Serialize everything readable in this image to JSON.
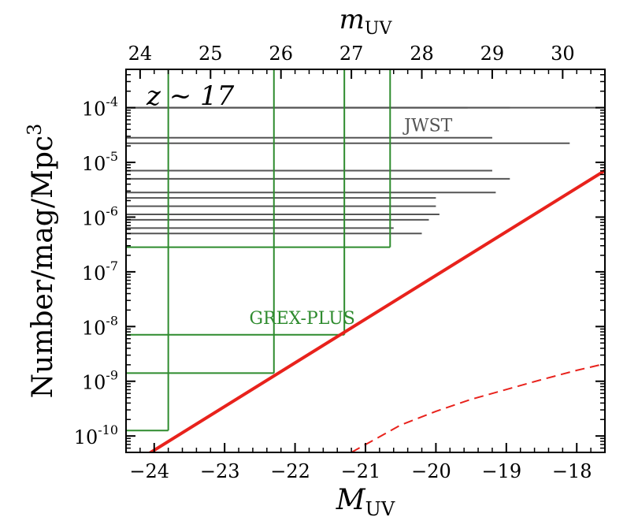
{
  "chart_data": {
    "type": "line",
    "title": "",
    "annotation": "z ~ 17",
    "xlabel_main": "M",
    "xlabel_sub": "UV",
    "xlabel_top_main": "m",
    "xlabel_top_sub": "UV",
    "ylabel_main": "Number/mag/Mpc",
    "ylabel_sup": "3",
    "x_scale": "linear",
    "y_scale": "log",
    "xlim": [
      -24.4,
      -17.6
    ],
    "ylim_log10": [
      -10.3,
      -3.3
    ],
    "xticks": [
      -24,
      -23,
      -22,
      -21,
      -20,
      -19,
      -18
    ],
    "xtick_labels": [
      "−24",
      "−23",
      "−22",
      "−21",
      "−20",
      "−19",
      "−18"
    ],
    "top_ticks_m": [
      24,
      25,
      26,
      27,
      28,
      29,
      30
    ],
    "top_tick_labels": [
      "24",
      "25",
      "26",
      "27",
      "28",
      "29",
      "30"
    ],
    "top_offset_m_minus_M": 48.2,
    "yticks_log10": [
      -10,
      -9,
      -8,
      -7,
      -6,
      -5,
      -4
    ],
    "ytick_labels": [
      {
        "base": "10",
        "exp": "-10"
      },
      {
        "base": "10",
        "exp": "-9"
      },
      {
        "base": "10",
        "exp": "-8"
      },
      {
        "base": "10",
        "exp": "-7"
      },
      {
        "base": "10",
        "exp": "-6"
      },
      {
        "base": "10",
        "exp": "-5"
      },
      {
        "base": "10",
        "exp": "-4"
      }
    ],
    "series": [
      {
        "name": "",
        "style": "solid",
        "color": "#e8221c",
        "x": [
          -24.3,
          -17.6
        ],
        "log10_y": [
          -10.5,
          -5.15
        ]
      },
      {
        "name": "",
        "style": "dashed",
        "color": "#e8221c",
        "x": [
          -21.2,
          -20.5,
          -20.0,
          -19.5,
          -19.0,
          -18.5,
          -18.0,
          -17.6
        ],
        "log10_y": [
          -10.3,
          -9.8,
          -9.55,
          -9.33,
          -9.15,
          -8.97,
          -8.8,
          -8.68
        ]
      }
    ],
    "survey_groups": [
      {
        "label": "JWST",
        "color": "#555555",
        "limits": [
          {
            "M_lim": -20.2,
            "log10_n": -6.3
          },
          {
            "M_lim": -20.6,
            "log10_n": -6.2
          },
          {
            "M_lim": -20.1,
            "log10_n": -6.05
          },
          {
            "M_lim": -19.95,
            "log10_n": -5.95
          },
          {
            "M_lim": -20.0,
            "log10_n": -5.8
          },
          {
            "M_lim": -20.0,
            "log10_n": -5.65
          },
          {
            "M_lim": -19.15,
            "log10_n": -5.55
          },
          {
            "M_lim": -18.95,
            "log10_n": -5.3
          },
          {
            "M_lim": -19.2,
            "log10_n": -5.15
          },
          {
            "M_lim": -18.1,
            "log10_n": -4.65
          },
          {
            "M_lim": -19.2,
            "log10_n": -4.55
          },
          {
            "M_lim": -17.6,
            "log10_n": -4.0
          },
          {
            "M_lim": -18.95,
            "log10_n": -4.0
          },
          {
            "M_lim": -19.55,
            "log10_n": -4.0
          }
        ]
      },
      {
        "label": "GREX-PLUS",
        "color": "#2e8b2e",
        "limits": [
          {
            "M_lim": -23.8,
            "log10_n": -9.9
          },
          {
            "M_lim": -22.3,
            "log10_n": -8.85
          },
          {
            "M_lim": -21.3,
            "log10_n": -8.15
          },
          {
            "M_lim": -20.65,
            "log10_n": -6.55
          }
        ],
        "vertical_lines_full_height": true
      }
    ],
    "grid": false,
    "legend": "none"
  }
}
